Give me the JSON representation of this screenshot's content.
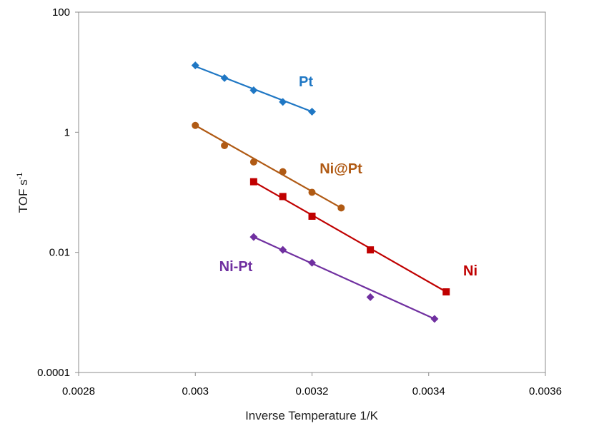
{
  "chart_data": {
    "type": "scatter",
    "title": "",
    "xlabel": "Inverse Temperature 1/K",
    "ylabel": "TOF s",
    "ylabel_sup": "-1",
    "xlim": [
      0.0028,
      0.0036
    ],
    "ylim": [
      0.0001,
      100
    ],
    "yscale": "log",
    "x_ticks": [
      "0.0028",
      "0.003",
      "0.0032",
      "0.0034",
      "0.0036"
    ],
    "y_ticks": [
      "0.0001",
      "0.01",
      "1",
      "100"
    ],
    "grid": false,
    "series": [
      {
        "name": "Pt",
        "color": "#1f77c4",
        "marker": "diamond",
        "x": [
          0.003,
          0.00305,
          0.0031,
          0.00315,
          0.0032
        ],
        "y": [
          13,
          8,
          5,
          3.2,
          2.2
        ],
        "fit": [
          [
            0.003,
            12.5
          ],
          [
            0.0032,
            2.2
          ]
        ]
      },
      {
        "name": "Ni@Pt",
        "color": "#b05a14",
        "marker": "circle",
        "x": [
          0.003,
          0.00305,
          0.0031,
          0.00315,
          0.0032,
          0.00325
        ],
        "y": [
          1.3,
          0.6,
          0.32,
          0.22,
          0.1,
          0.055
        ],
        "fit": [
          [
            0.003,
            1.3
          ],
          [
            0.00325,
            0.055
          ]
        ]
      },
      {
        "name": "Ni",
        "color": "#c00000",
        "marker": "square",
        "x": [
          0.0031,
          0.00315,
          0.0032,
          0.0033,
          0.00343
        ],
        "y": [
          0.15,
          0.085,
          0.04,
          0.011,
          0.0022
        ],
        "fit": [
          [
            0.0031,
            0.15
          ],
          [
            0.00343,
            0.0022
          ]
        ]
      },
      {
        "name": "Ni-Pt",
        "color": "#7030a0",
        "marker": "diamond",
        "x": [
          0.0031,
          0.00315,
          0.0032,
          0.0033,
          0.00341
        ],
        "y": [
          0.018,
          0.011,
          0.0067,
          0.0018,
          0.00078
        ],
        "fit": [
          [
            0.0031,
            0.018
          ],
          [
            0.00341,
            0.00078
          ]
        ]
      }
    ]
  }
}
